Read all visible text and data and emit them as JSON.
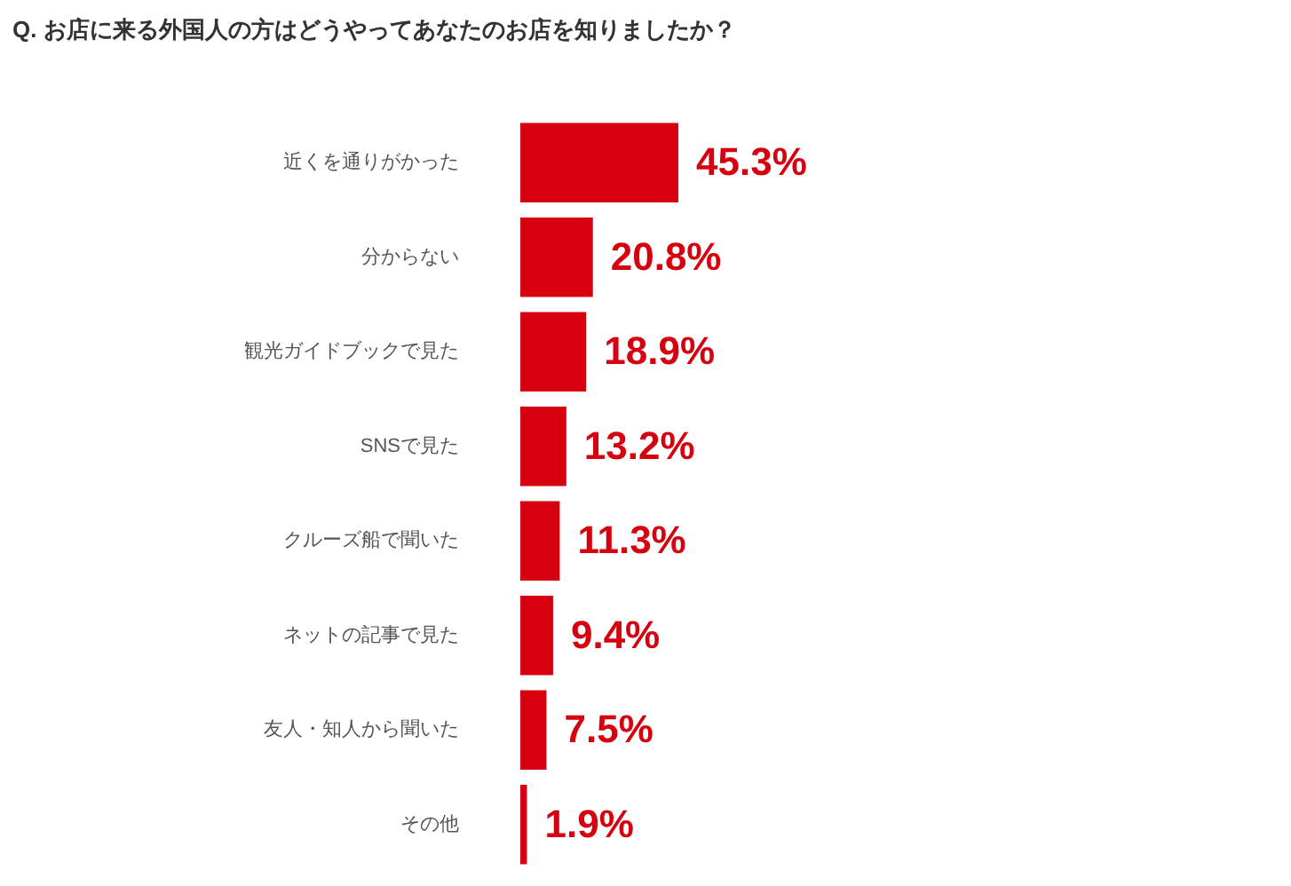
{
  "chart_data": {
    "type": "bar",
    "orientation": "horizontal",
    "title": "Q. お店に来る外国人の方はどうやってあなたのお店を知りましたか？",
    "categories": [
      "近くを通りがかった",
      "分からない",
      "観光ガイドブックで見た",
      "SNSで見た",
      "クルーズ船で聞いた",
      "ネットの記事で見た",
      "友人・知人から聞いた",
      "その他"
    ],
    "values": [
      45.3,
      20.8,
      18.9,
      13.2,
      11.3,
      9.4,
      7.5,
      1.9
    ],
    "value_labels": [
      "45.3%",
      "20.8%",
      "18.9%",
      "13.2%",
      "11.3%",
      "9.4%",
      "7.5%",
      "1.9%"
    ],
    "color": "#d7000f",
    "tick_labels": "y"
  }
}
